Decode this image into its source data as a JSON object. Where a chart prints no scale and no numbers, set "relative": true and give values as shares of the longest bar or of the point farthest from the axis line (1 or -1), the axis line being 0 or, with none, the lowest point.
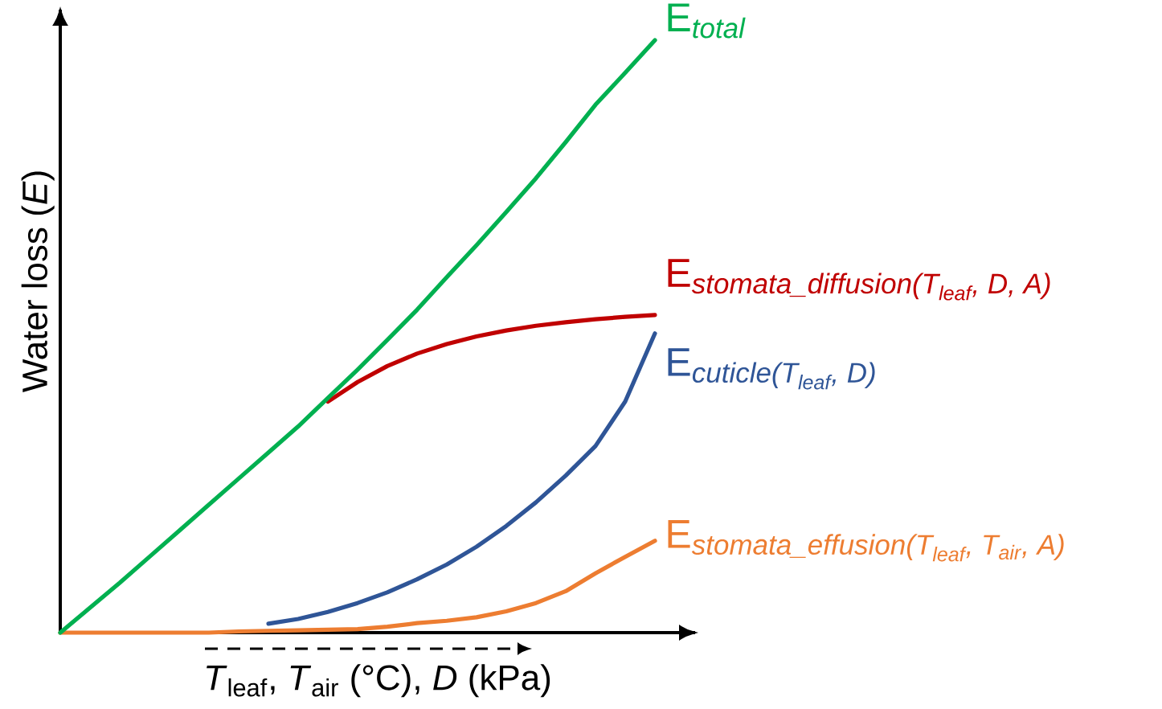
{
  "chart_data": {
    "type": "line",
    "relative": true,
    "xlabel": "*T*$_{leaf}$, *T*$_{air}$ (°C), *D* (kPa)",
    "ylabel": "Water loss (*E*)",
    "legend": false,
    "categories": [
      null,
      null,
      null,
      null,
      null,
      null,
      null,
      null,
      null,
      null,
      null,
      null,
      null,
      null,
      null,
      null,
      null,
      null,
      null,
      null,
      null
    ],
    "series": [
      {
        "name": "\\textrm{E}_{\\textit{total}}",
        "color": "#00b050",
        "values": [
          0,
          0.042,
          0.084,
          0.128,
          0.172,
          0.216,
          0.26,
          0.304,
          0.348,
          0.396,
          0.444,
          0.494,
          0.545,
          0.6,
          0.654,
          0.71,
          0.767,
          0.828,
          0.891,
          0.945,
          1
        ]
      },
      {
        "name": "\\textrm{E}_{\\textit{stomata\\_diffusion(T}_{\\textit{leaf}}\\textit{, D, A)}}",
        "color": "#c00000",
        "values": [
          null,
          null,
          null,
          null,
          null,
          null,
          null,
          null,
          null,
          0.39,
          0.423,
          0.45,
          0.471,
          0.487,
          0.5,
          0.51,
          0.518,
          0.524,
          0.529,
          0.533,
          0.536
        ]
      },
      {
        "name": "\\textrm{E}_{\\textit{cuticle(T}_{\\textit{leaf}}\\textit{, D)}}",
        "color": "#2f5597",
        "values": [
          null,
          null,
          null,
          null,
          null,
          null,
          null,
          0.015,
          0.023,
          0.035,
          0.05,
          0.068,
          0.09,
          0.115,
          0.145,
          0.18,
          0.22,
          0.265,
          0.315,
          0.39,
          0.505
        ]
      },
      {
        "name": "\\textrm{E}_{\\textit{stomata\\_effusion(T}_{\\textit{leaf}}\\textit{, T}_{\\textit{air}}\\textit{, A)}}",
        "color": "#ed7d31",
        "values": [
          0,
          0,
          0,
          0,
          0,
          0,
          0.002,
          0.003,
          0.004,
          0.005,
          0.006,
          0.01,
          0.016,
          0.02,
          0.026,
          0.036,
          0.05,
          0.07,
          0.1,
          0.128,
          0.155
        ]
      }
    ]
  }
}
